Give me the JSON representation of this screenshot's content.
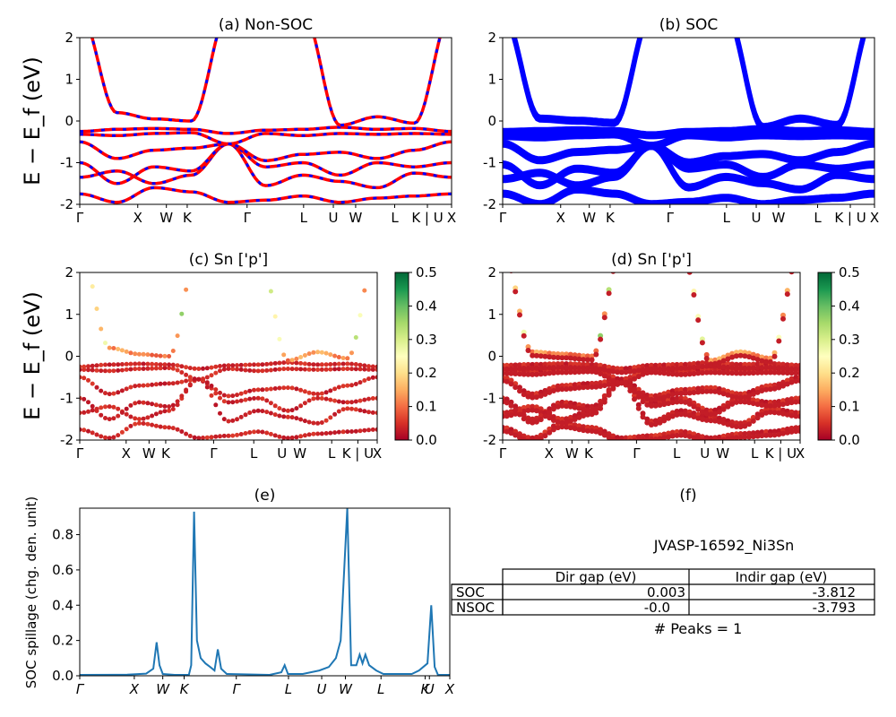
{
  "figure": {
    "ylabel": "E − E_f (eV)"
  },
  "chart_data": [
    {
      "id": "a",
      "type": "line",
      "title": "(a) Non-SOC",
      "ylim": [
        -2,
        2
      ],
      "yticks": [
        2,
        1,
        0,
        -1,
        -2
      ],
      "xticks": [
        "Γ",
        "X",
        "W",
        "K",
        "Γ",
        "L",
        "U",
        "W",
        "L",
        "K | U",
        "X"
      ],
      "series": [
        {
          "name": "",
          "color": "#ff0000",
          "dashed_overlay": "#0000ff"
        }
      ],
      "bands_at_kpoints": [
        [
          -1.75,
          -1.95,
          -1.6,
          -1.7,
          -1.95,
          -1.9,
          -1.8,
          -1.95,
          -1.85,
          -1.8,
          -1.75
        ],
        [
          -1.35,
          -1.2,
          -1.5,
          -1.3,
          -0.55,
          -1.55,
          -1.3,
          -1.45,
          -1.6,
          -1.25,
          -1.35
        ],
        [
          -1.0,
          -1.5,
          -1.1,
          -1.2,
          -0.55,
          -1.1,
          -1.0,
          -1.3,
          -1.0,
          -1.1,
          -1.0
        ],
        [
          -0.5,
          -0.9,
          -0.7,
          -0.65,
          -0.55,
          -0.95,
          -0.8,
          -0.75,
          -0.9,
          -0.7,
          -0.5
        ],
        [
          -0.32,
          -0.35,
          -0.3,
          -0.28,
          -0.55,
          -0.3,
          -0.35,
          -0.3,
          -0.32,
          -0.3,
          -0.32
        ],
        [
          -0.25,
          -0.2,
          -0.18,
          -0.2,
          -0.3,
          -0.22,
          -0.2,
          -0.15,
          -0.2,
          -0.18,
          -0.25
        ],
        [
          2.6,
          0.2,
          0.05,
          0.0,
          2.6,
          2.2,
          2.6,
          -0.1,
          0.1,
          -0.05,
          2.6
        ]
      ]
    },
    {
      "id": "b",
      "type": "line",
      "title": "(b) SOC",
      "ylim": [
        -2,
        2
      ],
      "yticks": [
        2,
        1,
        0,
        -1,
        -2
      ],
      "xticks": [
        "Γ",
        "X",
        "W",
        "K",
        "Γ",
        "L",
        "U",
        "W",
        "L",
        "K | U",
        "X"
      ],
      "series": [
        {
          "name": "",
          "color": "#0000ff"
        }
      ],
      "bands_at_kpoints": [
        [
          -1.7,
          -1.95,
          -1.6,
          -1.7,
          -1.95,
          -1.9,
          -1.8,
          -1.95,
          -1.85,
          -1.8,
          -1.7
        ],
        [
          -1.35,
          -1.2,
          -1.5,
          -1.3,
          -0.55,
          -1.55,
          -1.3,
          -1.45,
          -1.6,
          -1.25,
          -1.35
        ],
        [
          -1.0,
          -1.5,
          -1.1,
          -1.2,
          -0.55,
          -1.1,
          -1.0,
          -1.3,
          -1.0,
          -1.1,
          -1.0
        ],
        [
          -0.5,
          -0.9,
          -0.7,
          -0.65,
          -0.55,
          -0.95,
          -0.8,
          -0.75,
          -0.9,
          -0.7,
          -0.5
        ],
        [
          -0.32,
          -0.35,
          -0.3,
          -0.28,
          -0.55,
          -0.3,
          -0.35,
          -0.3,
          -0.32,
          -0.3,
          -0.32
        ],
        [
          -0.22,
          -0.2,
          -0.18,
          -0.2,
          -0.3,
          -0.22,
          -0.2,
          -0.15,
          -0.2,
          -0.18,
          -0.22
        ],
        [
          2.6,
          0.1,
          0.05,
          0.0,
          2.6,
          2.2,
          2.6,
          -0.1,
          0.1,
          -0.05,
          2.6
        ]
      ]
    },
    {
      "id": "c",
      "type": "scatter",
      "title": "(c)  Sn ['p']",
      "ylim": [
        -2,
        2
      ],
      "yticks": [
        2,
        1,
        0,
        -1,
        -2
      ],
      "xticks": [
        "Γ",
        "X",
        "W",
        "K",
        "Γ",
        "L",
        "U",
        "W",
        "L",
        "K | U",
        "X"
      ],
      "colorbar": {
        "range": [
          0.0,
          0.5
        ],
        "ticks": [
          "0.5",
          "0.4",
          "0.3",
          "0.2",
          "0.1",
          "0.0"
        ],
        "colormap": "RdYlGn"
      },
      "bands_at_kpoints": [
        [
          -1.75,
          -1.95,
          -1.6,
          -1.7,
          -1.95,
          -1.9,
          -1.8,
          -1.95,
          -1.85,
          -1.8,
          -1.75
        ],
        [
          -1.35,
          -1.2,
          -1.5,
          -1.3,
          -0.55,
          -1.55,
          -1.3,
          -1.45,
          -1.6,
          -1.25,
          -1.35
        ],
        [
          -1.0,
          -1.5,
          -1.1,
          -1.2,
          -0.55,
          -1.1,
          -1.0,
          -1.3,
          -1.0,
          -1.1,
          -1.0
        ],
        [
          -0.5,
          -0.9,
          -0.7,
          -0.65,
          -0.55,
          -0.95,
          -0.8,
          -0.75,
          -0.9,
          -0.7,
          -0.5
        ],
        [
          -0.32,
          -0.35,
          -0.3,
          -0.28,
          -0.55,
          -0.3,
          -0.35,
          -0.3,
          -0.32,
          -0.3,
          -0.32
        ],
        [
          -0.25,
          -0.2,
          -0.18,
          -0.2,
          -0.3,
          -0.22,
          -0.2,
          -0.15,
          -0.2,
          -0.18,
          -0.25
        ],
        [
          2.6,
          0.2,
          0.05,
          0.0,
          2.6,
          2.2,
          2.6,
          -0.1,
          0.1,
          -0.05,
          2.6
        ]
      ]
    },
    {
      "id": "d",
      "type": "scatter",
      "title": "(d) Sn ['p']",
      "ylim": [
        -2,
        2
      ],
      "yticks": [
        2,
        1,
        0,
        -1,
        -2
      ],
      "xticks": [
        "Γ",
        "X",
        "W",
        "K",
        "Γ",
        "L",
        "U",
        "W",
        "L",
        "K | U",
        "X"
      ],
      "colorbar": {
        "range": [
          0.0,
          0.5
        ],
        "ticks": [
          "0.5",
          "0.4",
          "0.3",
          "0.2",
          "0.1",
          "0.0"
        ],
        "colormap": "RdYlGn"
      },
      "bands_at_kpoints": [
        [
          -1.7,
          -1.95,
          -1.6,
          -1.7,
          -1.95,
          -1.9,
          -1.8,
          -1.95,
          -1.85,
          -1.8,
          -1.7
        ],
        [
          -1.35,
          -1.2,
          -1.5,
          -1.3,
          -0.55,
          -1.55,
          -1.3,
          -1.45,
          -1.6,
          -1.25,
          -1.35
        ],
        [
          -1.0,
          -1.5,
          -1.1,
          -1.2,
          -0.55,
          -1.1,
          -1.0,
          -1.3,
          -1.0,
          -1.1,
          -1.0
        ],
        [
          -0.5,
          -0.9,
          -0.7,
          -0.65,
          -0.55,
          -0.95,
          -0.8,
          -0.75,
          -0.9,
          -0.7,
          -0.5
        ],
        [
          -0.32,
          -0.35,
          -0.3,
          -0.28,
          -0.55,
          -0.3,
          -0.35,
          -0.3,
          -0.32,
          -0.3,
          -0.32
        ],
        [
          -0.22,
          -0.2,
          -0.18,
          -0.2,
          -0.3,
          -0.22,
          -0.2,
          -0.15,
          -0.2,
          -0.18,
          -0.22
        ],
        [
          2.6,
          0.1,
          0.05,
          0.0,
          2.6,
          2.2,
          2.6,
          -0.1,
          0.1,
          -0.05,
          2.6
        ]
      ]
    },
    {
      "id": "e",
      "type": "line",
      "title": "(e)",
      "ylabel": "SOC spillage (chg. den. unit)",
      "ylim": [
        0,
        0.95
      ],
      "yticks": [
        "0.0",
        "0.2",
        "0.4",
        "0.6",
        "0.8"
      ],
      "xticks": [
        "Γ",
        "X",
        "W",
        "K",
        "Γ",
        "L",
        "U",
        "W",
        "L",
        "K",
        "U",
        "X"
      ],
      "series": [
        {
          "name": "",
          "color": "#1f77b4"
        }
      ],
      "points": [
        [
          0,
          0.005
        ],
        [
          10,
          0.006
        ],
        [
          14,
          0.012
        ],
        [
          15.5,
          0.04
        ],
        [
          16.2,
          0.19
        ],
        [
          16.8,
          0.06
        ],
        [
          17.5,
          0.01
        ],
        [
          20,
          0.005
        ],
        [
          23,
          0.005
        ],
        [
          23.5,
          0.06
        ],
        [
          24.1,
          0.93
        ],
        [
          24.7,
          0.2
        ],
        [
          25.5,
          0.1
        ],
        [
          26.5,
          0.07
        ],
        [
          27.5,
          0.05
        ],
        [
          28.4,
          0.03
        ],
        [
          29.1,
          0.15
        ],
        [
          29.8,
          0.04
        ],
        [
          31,
          0.01
        ],
        [
          40,
          0.005
        ],
        [
          42.5,
          0.02
        ],
        [
          43.2,
          0.06
        ],
        [
          43.9,
          0.01
        ],
        [
          47,
          0.01
        ],
        [
          50.5,
          0.03
        ],
        [
          52.5,
          0.05
        ],
        [
          54,
          0.1
        ],
        [
          55,
          0.2
        ],
        [
          56.4,
          0.95
        ],
        [
          57.2,
          0.06
        ],
        [
          58.3,
          0.06
        ],
        [
          59,
          0.12
        ],
        [
          59.6,
          0.07
        ],
        [
          60.2,
          0.12
        ],
        [
          61,
          0.06
        ],
        [
          62.5,
          0.03
        ],
        [
          64,
          0.01
        ],
        [
          70,
          0.01
        ],
        [
          71.5,
          0.03
        ],
        [
          73.3,
          0.07
        ],
        [
          74.1,
          0.4
        ],
        [
          74.8,
          0.05
        ],
        [
          75.5,
          0.005
        ],
        [
          78,
          0.005
        ]
      ],
      "xrange": [
        0,
        78
      ],
      "xtick_positions": [
        0,
        11.5,
        17.5,
        22,
        33,
        44,
        51,
        56,
        63.5,
        72.8,
        73.7,
        78
      ]
    },
    {
      "id": "f",
      "type": "table",
      "title": "(f)",
      "subtitle": "JVASP-16592_Ni3Sn",
      "columns": [
        "",
        "Dir gap (eV)",
        "Indir gap (eV)"
      ],
      "rows": [
        [
          "SOC",
          "0.003",
          "-3.812"
        ],
        [
          "NSOC",
          "-0.0",
          "-3.793"
        ]
      ],
      "footer": "# Peaks = 1"
    }
  ]
}
